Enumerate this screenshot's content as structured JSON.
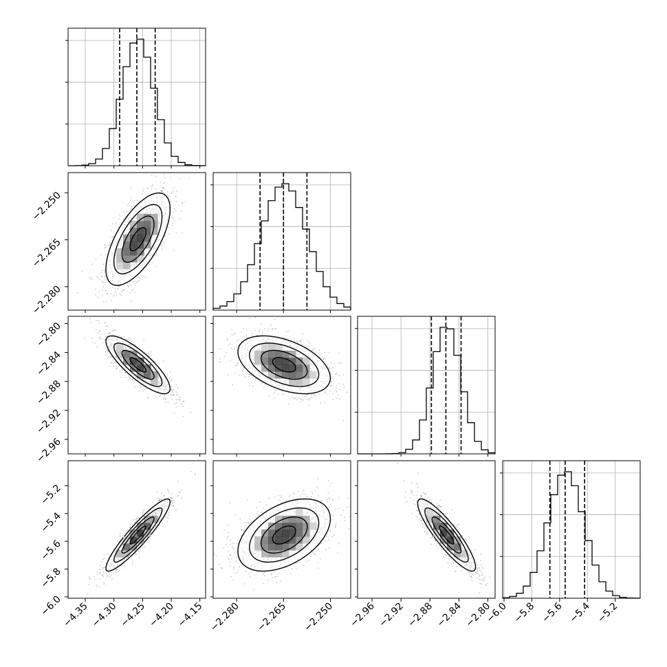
{
  "chart_data": {
    "type": "corner",
    "title": "",
    "parameters": [
      {
        "index": 0,
        "label": "",
        "range": [
          -4.38,
          -4.14
        ],
        "ticks": [
          -4.35,
          -4.3,
          -4.25,
          -4.2,
          -4.15
        ],
        "tick_labels": [
          "−4.35",
          "−4.30",
          "−4.25",
          "−4.20",
          "−4.15"
        ],
        "quantiles": [
          -4.29,
          -4.26,
          -4.228
        ],
        "mean": -4.258,
        "sd": 0.028
      },
      {
        "index": 1,
        "label": "",
        "range": [
          -2.2875,
          -2.2435
        ],
        "ticks": [
          -2.28,
          -2.265,
          -2.25
        ],
        "tick_labels": [
          "−2.280",
          "−2.265",
          "−2.250"
        ],
        "quantiles": [
          -2.2725,
          -2.265,
          -2.2575
        ],
        "mean": -2.2648,
        "sd": 0.0074
      },
      {
        "index": 2,
        "label": "",
        "range": [
          -2.98,
          -2.79
        ],
        "ticks": [
          -2.96,
          -2.92,
          -2.88,
          -2.84,
          -2.8
        ],
        "tick_labels": [
          "−2.96",
          "−2.92",
          "−2.88",
          "−2.84",
          "−2.80"
        ],
        "quantiles": [
          -2.878,
          -2.858,
          -2.837
        ],
        "mean": -2.857,
        "sd": 0.02
      },
      {
        "index": 3,
        "label": "",
        "range": [
          -6.01,
          -5.02
        ],
        "ticks": [
          -6.0,
          -5.8,
          -5.6,
          -5.4,
          -5.2
        ],
        "tick_labels": [
          "−6.0",
          "−5.8",
          "−5.6",
          "−5.4",
          "−5.2"
        ],
        "quantiles": [
          -5.67,
          -5.56,
          -5.42
        ],
        "mean": -5.555,
        "sd": 0.13
      }
    ],
    "correlations": [
      {
        "pair": [
          0,
          1
        ],
        "rho": 0.65
      },
      {
        "pair": [
          0,
          2
        ],
        "rho": -0.82
      },
      {
        "pair": [
          1,
          2
        ],
        "rho": -0.45
      },
      {
        "pair": [
          0,
          3
        ],
        "rho": 0.92
      },
      {
        "pair": [
          1,
          3
        ],
        "rho": 0.45
      },
      {
        "pair": [
          2,
          3
        ],
        "rho": -0.88
      }
    ],
    "histogram_bins": 20,
    "contour_levels_sigma": [
      0.5,
      1.0,
      1.5,
      2.0
    ],
    "grid": true,
    "colors": {
      "hist": "#000000",
      "points": "#8c8c8c",
      "grid": "#b0b0b0"
    }
  }
}
